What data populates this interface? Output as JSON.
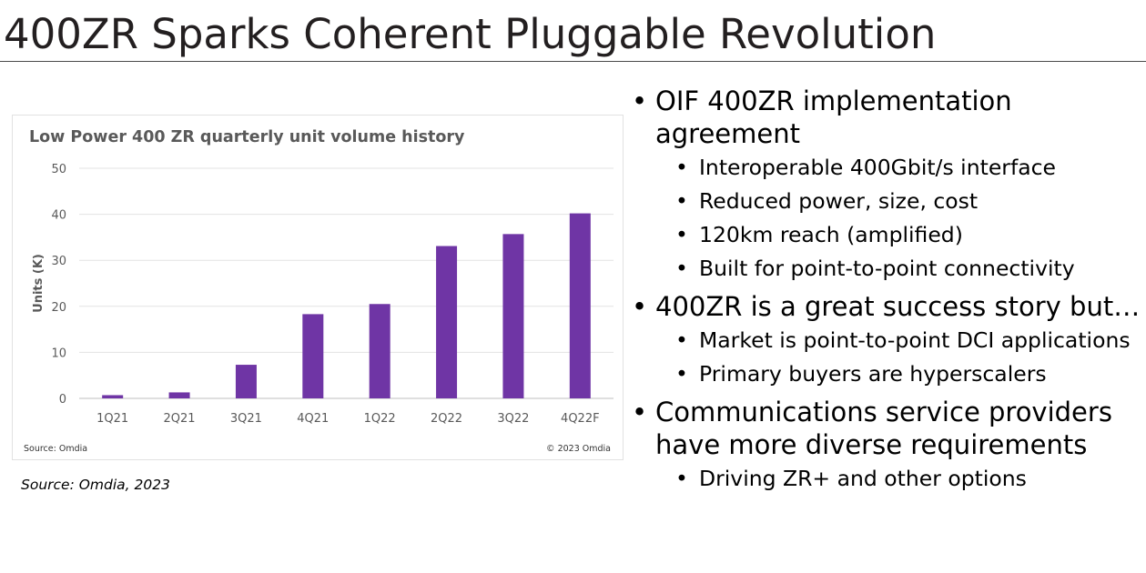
{
  "slide": {
    "title": "400ZR Sparks Coherent Pluggable Revolution",
    "caption": "Source: Omdia, 2023"
  },
  "chart_data": {
    "type": "bar",
    "title": "Low Power 400 ZR quarterly unit volume history",
    "ylabel": "Units (K)",
    "xlabel": "",
    "ylim": [
      0,
      50
    ],
    "yticks": [
      0,
      10,
      20,
      30,
      40,
      50
    ],
    "grid": true,
    "categories": [
      "1Q21",
      "2Q21",
      "3Q21",
      "4Q21",
      "1Q22",
      "2Q22",
      "3Q22",
      "4Q22F"
    ],
    "values": [
      0.7,
      1.3,
      7.3,
      18.3,
      20.5,
      33.1,
      35.7,
      40.2
    ],
    "bar_color": "#6f35a5",
    "source_left": "Source: Omdia",
    "source_right": "© 2023 Omdia"
  },
  "bullets": [
    {
      "text": "OIF 400ZR implementation agreement",
      "sub": [
        "Interoperable 400Gbit/s interface",
        "Reduced power, size, cost",
        "120km reach (amplified)",
        "Built for point-to-point connectivity"
      ]
    },
    {
      "text": "400ZR is a great success story but…",
      "sub": [
        "Market is point-to-point DCI applications",
        "Primary buyers are hyperscalers"
      ]
    },
    {
      "text": "Communications service providers have more diverse requirements",
      "sub": [
        "Driving ZR+ and other options"
      ]
    }
  ]
}
